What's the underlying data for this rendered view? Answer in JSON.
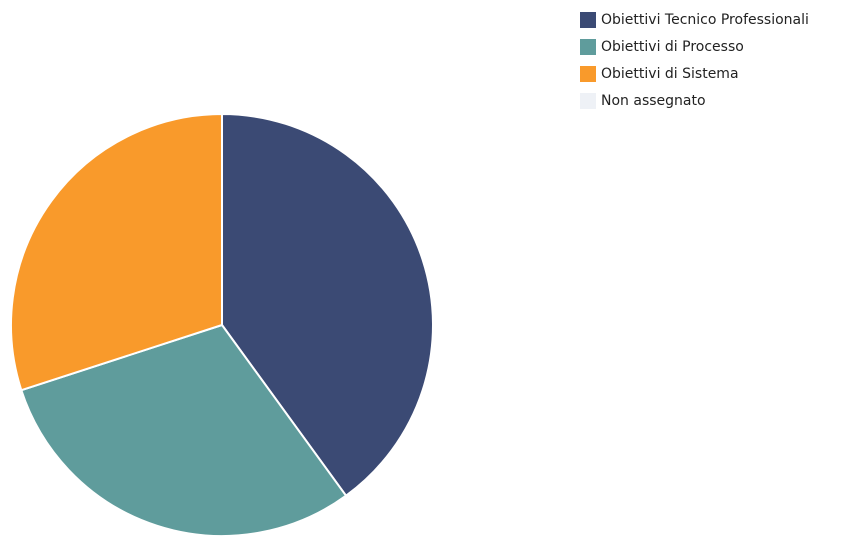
{
  "chart_data": {
    "type": "pie",
    "title": "",
    "legend_position": "top-right",
    "slices": [
      {
        "name": "Obiettivi Tecnico Professionali",
        "value": 40,
        "color": "#3b4a74"
      },
      {
        "name": "Obiettivi di Processo",
        "value": 30,
        "color": "#5f9c9c"
      },
      {
        "name": "Obiettivi di Sistema",
        "value": 30,
        "color": "#f99a2b"
      },
      {
        "name": "Non assegnato",
        "value": 0,
        "color": "#eef1f6"
      }
    ]
  }
}
